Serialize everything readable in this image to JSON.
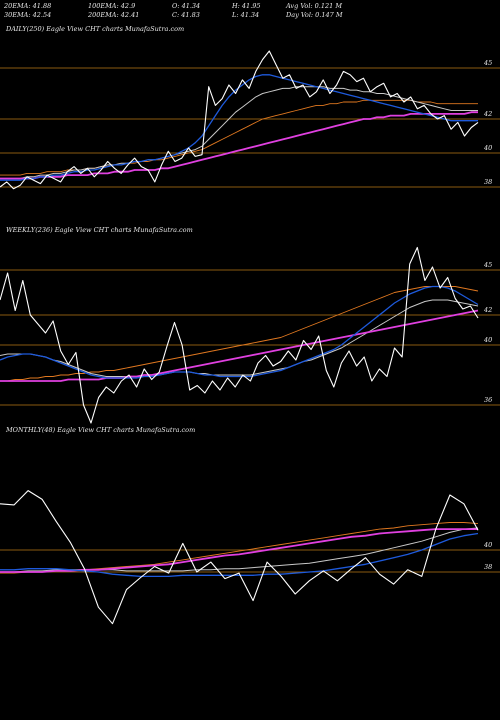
{
  "header": {
    "ema20": "20EMA: 41.88",
    "ema100": "100EMA: 42.9",
    "open": "O: 41.34",
    "high": "H: 41.95",
    "avg_vol": "Avg Vol: 0.121 M",
    "ema30": "30EMA: 42.54",
    "ema200": "200EMA: 42.41",
    "close": "C: 41.83",
    "low": "L: 41.34",
    "day_vol": "Day Vol: 0.147 M"
  },
  "colors": {
    "background": "#000000",
    "price": "#ffffff",
    "ema_fast": "#1e5adc",
    "ema_mid": "#c8c8c8",
    "ema_slow": "#e07820",
    "ema_long": "#e040e0",
    "hline": "#8a5a10"
  },
  "chart_data": [
    {
      "type": "line",
      "title": "DAILY(250) Eagle   View  CHT charts MunafaSutra.com",
      "y_ticks": [
        "45",
        "42",
        "40",
        "38"
      ],
      "ylim": [
        37,
        47
      ],
      "series": [
        {
          "role": "price",
          "values": [
            38.0,
            38.3,
            37.9,
            38.1,
            38.6,
            38.4,
            38.2,
            38.7,
            38.5,
            38.3,
            38.9,
            39.2,
            38.8,
            39.1,
            38.6,
            39.0,
            39.5,
            39.1,
            38.8,
            39.3,
            39.7,
            39.2,
            39.0,
            38.3,
            39.3,
            40.1,
            39.5,
            39.7,
            40.3,
            39.8,
            39.9,
            43.9,
            42.8,
            43.2,
            44.0,
            43.5,
            44.3,
            43.8,
            44.8,
            45.5,
            46.0,
            45.2,
            44.4,
            44.6,
            43.8,
            44.0,
            43.3,
            43.6,
            44.3,
            43.5,
            44.0,
            44.8,
            44.6,
            44.2,
            44.4,
            43.6,
            43.9,
            44.1,
            43.3,
            43.5,
            43.0,
            43.3,
            42.6,
            42.8,
            42.3,
            42.0,
            42.2,
            41.4,
            41.8,
            41.0,
            41.5,
            41.8
          ]
        },
        {
          "role": "ema-fast",
          "values": [
            38.4,
            38.4,
            38.4,
            38.4,
            38.5,
            38.5,
            38.6,
            38.6,
            38.7,
            38.7,
            38.8,
            38.9,
            38.9,
            39.0,
            39.0,
            39.1,
            39.2,
            39.3,
            39.3,
            39.4,
            39.5,
            39.5,
            39.6,
            39.6,
            39.7,
            39.8,
            39.9,
            40.1,
            40.3,
            40.6,
            41.0,
            41.6,
            42.2,
            42.8,
            43.3,
            43.7,
            44.0,
            44.3,
            44.5,
            44.6,
            44.6,
            44.5,
            44.4,
            44.3,
            44.2,
            44.1,
            44.0,
            43.9,
            43.8,
            43.7,
            43.6,
            43.5,
            43.4,
            43.3,
            43.2,
            43.1,
            43.0,
            42.9,
            42.8,
            42.7,
            42.6,
            42.5,
            42.4,
            42.3,
            42.2,
            42.1,
            42.0,
            41.9,
            41.9,
            41.9,
            41.9,
            41.9
          ]
        },
        {
          "role": "ema-mid",
          "values": [
            38.5,
            38.5,
            38.5,
            38.5,
            38.6,
            38.6,
            38.7,
            38.7,
            38.8,
            38.8,
            38.9,
            39.0,
            39.0,
            39.1,
            39.1,
            39.2,
            39.3,
            39.3,
            39.4,
            39.4,
            39.5,
            39.5,
            39.6,
            39.6,
            39.7,
            39.8,
            39.9,
            40.0,
            40.1,
            40.2,
            40.4,
            40.8,
            41.2,
            41.6,
            42.0,
            42.4,
            42.7,
            43.0,
            43.3,
            43.5,
            43.6,
            43.7,
            43.8,
            43.8,
            43.9,
            43.9,
            43.9,
            43.9,
            43.9,
            43.8,
            43.8,
            43.8,
            43.7,
            43.7,
            43.6,
            43.6,
            43.5,
            43.5,
            43.4,
            43.3,
            43.2,
            43.1,
            43.0,
            42.9,
            42.8,
            42.7,
            42.6,
            42.5,
            42.5,
            42.5,
            42.5,
            42.5
          ]
        },
        {
          "role": "ema-slow",
          "values": [
            38.7,
            38.7,
            38.7,
            38.7,
            38.8,
            38.8,
            38.8,
            38.9,
            38.9,
            38.9,
            39.0,
            39.0,
            39.0,
            39.1,
            39.1,
            39.2,
            39.2,
            39.3,
            39.3,
            39.4,
            39.4,
            39.5,
            39.5,
            39.6,
            39.6,
            39.7,
            39.8,
            39.9,
            40.0,
            40.1,
            40.2,
            40.4,
            40.6,
            40.8,
            41.0,
            41.2,
            41.4,
            41.6,
            41.8,
            42.0,
            42.1,
            42.2,
            42.3,
            42.4,
            42.5,
            42.6,
            42.7,
            42.8,
            42.8,
            42.9,
            42.9,
            43.0,
            43.0,
            43.0,
            43.1,
            43.1,
            43.1,
            43.1,
            43.1,
            43.1,
            43.1,
            43.1,
            43.0,
            43.0,
            43.0,
            42.9,
            42.9,
            42.9,
            42.9,
            42.9,
            42.9,
            42.9
          ]
        },
        {
          "role": "ema-long",
          "values": [
            38.5,
            38.5,
            38.5,
            38.5,
            38.5,
            38.5,
            38.6,
            38.6,
            38.6,
            38.6,
            38.7,
            38.7,
            38.7,
            38.7,
            38.8,
            38.8,
            38.8,
            38.9,
            38.9,
            38.9,
            39.0,
            39.0,
            39.0,
            39.0,
            39.1,
            39.1,
            39.2,
            39.3,
            39.4,
            39.5,
            39.6,
            39.7,
            39.8,
            39.9,
            40.0,
            40.1,
            40.2,
            40.3,
            40.4,
            40.5,
            40.6,
            40.7,
            40.8,
            40.9,
            41.0,
            41.1,
            41.2,
            41.3,
            41.4,
            41.5,
            41.6,
            41.7,
            41.8,
            41.9,
            42.0,
            42.0,
            42.1,
            42.1,
            42.2,
            42.2,
            42.2,
            42.3,
            42.3,
            42.3,
            42.3,
            42.3,
            42.3,
            42.3,
            42.3,
            42.3,
            42.4,
            42.4
          ]
        }
      ],
      "hlines": [
        45,
        42,
        40,
        38
      ]
    },
    {
      "type": "line",
      "title": "WEEKLY(236) Eagle   View  CHT charts MunafaSutra.com",
      "y_ticks": [
        "45",
        "42",
        "40",
        "36"
      ],
      "ylim": [
        34,
        47
      ],
      "series": [
        {
          "role": "price",
          "values": [
            43.0,
            44.8,
            42.3,
            44.3,
            42.0,
            41.4,
            40.8,
            41.6,
            39.6,
            38.7,
            39.5,
            36.0,
            34.8,
            36.5,
            37.2,
            36.8,
            37.6,
            38.0,
            37.2,
            38.4,
            37.7,
            38.2,
            39.9,
            41.5,
            40.0,
            37.0,
            37.3,
            36.8,
            37.6,
            37.0,
            37.8,
            37.2,
            38.0,
            37.6,
            38.8,
            39.3,
            38.6,
            38.9,
            39.6,
            39.0,
            40.3,
            39.7,
            40.6,
            38.3,
            37.2,
            38.8,
            39.6,
            38.6,
            39.2,
            37.6,
            38.4,
            37.9,
            39.8,
            39.2,
            45.4,
            46.5,
            44.3,
            45.2,
            43.8,
            44.5,
            43.1,
            42.4,
            42.6,
            41.8
          ]
        },
        {
          "role": "ema-fast",
          "values": [
            39.0,
            39.2,
            39.3,
            39.4,
            39.4,
            39.3,
            39.2,
            39.0,
            38.8,
            38.6,
            38.4,
            38.2,
            38.0,
            37.9,
            37.8,
            37.8,
            37.8,
            37.8,
            37.8,
            37.9,
            37.9,
            38.0,
            38.1,
            38.2,
            38.2,
            38.2,
            38.1,
            38.0,
            38.0,
            37.9,
            37.9,
            37.9,
            37.9,
            37.9,
            38.0,
            38.1,
            38.2,
            38.3,
            38.5,
            38.7,
            38.9,
            39.1,
            39.3,
            39.5,
            39.7,
            40.0,
            40.4,
            40.8,
            41.2,
            41.6,
            42.0,
            42.4,
            42.8,
            43.1,
            43.4,
            43.6,
            43.8,
            43.9,
            43.9,
            43.8,
            43.6,
            43.3,
            43.0,
            42.7
          ]
        },
        {
          "role": "ema-mid",
          "values": [
            39.3,
            39.4,
            39.4,
            39.4,
            39.4,
            39.3,
            39.2,
            39.0,
            38.9,
            38.7,
            38.5,
            38.3,
            38.1,
            38.0,
            37.9,
            37.9,
            37.9,
            37.9,
            37.9,
            37.9,
            38.0,
            38.0,
            38.1,
            38.2,
            38.2,
            38.2,
            38.1,
            38.1,
            38.0,
            38.0,
            38.0,
            38.0,
            38.0,
            38.0,
            38.1,
            38.2,
            38.3,
            38.4,
            38.5,
            38.7,
            38.9,
            39.0,
            39.2,
            39.4,
            39.6,
            39.8,
            40.1,
            40.4,
            40.7,
            41.0,
            41.3,
            41.6,
            41.9,
            42.2,
            42.5,
            42.7,
            42.9,
            43.0,
            43.0,
            43.0,
            42.9,
            42.8,
            42.7,
            42.6
          ]
        },
        {
          "role": "ema-slow",
          "values": [
            37.6,
            37.6,
            37.7,
            37.7,
            37.8,
            37.8,
            37.9,
            37.9,
            38.0,
            38.0,
            38.1,
            38.1,
            38.2,
            38.2,
            38.3,
            38.3,
            38.4,
            38.5,
            38.6,
            38.7,
            38.8,
            38.9,
            39.0,
            39.1,
            39.2,
            39.3,
            39.4,
            39.5,
            39.6,
            39.7,
            39.8,
            39.9,
            40.0,
            40.1,
            40.2,
            40.3,
            40.4,
            40.5,
            40.7,
            40.9,
            41.1,
            41.3,
            41.5,
            41.7,
            41.9,
            42.1,
            42.3,
            42.5,
            42.7,
            42.9,
            43.1,
            43.3,
            43.5,
            43.6,
            43.7,
            43.8,
            43.9,
            43.9,
            43.9,
            43.9,
            43.9,
            43.8,
            43.7,
            43.6
          ]
        },
        {
          "role": "ema-long",
          "values": [
            37.6,
            37.6,
            37.6,
            37.6,
            37.6,
            37.6,
            37.6,
            37.6,
            37.6,
            37.7,
            37.7,
            37.7,
            37.7,
            37.7,
            37.8,
            37.8,
            37.8,
            37.9,
            37.9,
            38.0,
            38.0,
            38.1,
            38.2,
            38.3,
            38.4,
            38.5,
            38.6,
            38.7,
            38.8,
            38.9,
            39.0,
            39.1,
            39.2,
            39.3,
            39.4,
            39.5,
            39.6,
            39.7,
            39.8,
            39.9,
            40.0,
            40.1,
            40.2,
            40.3,
            40.4,
            40.5,
            40.6,
            40.7,
            40.8,
            40.9,
            41.0,
            41.1,
            41.2,
            41.3,
            41.4,
            41.5,
            41.6,
            41.7,
            41.8,
            41.9,
            42.0,
            42.1,
            42.2,
            42.3
          ]
        }
      ],
      "hlines": [
        45,
        42,
        40,
        36
      ]
    },
    {
      "type": "line",
      "title": "MONTHLY(48) Eagle   View  CHT charts MunafaSutra.com",
      "y_ticks": [
        "40",
        "38"
      ],
      "ylim": [
        30,
        50
      ],
      "series": [
        {
          "role": "price",
          "values": [
            44.2,
            44.1,
            45.4,
            44.6,
            42.6,
            40.7,
            38.3,
            34.8,
            33.3,
            36.4,
            37.5,
            38.5,
            37.9,
            40.6,
            38.0,
            38.9,
            37.4,
            37.9,
            35.4,
            38.9,
            37.6,
            36.0,
            37.2,
            38.1,
            37.2,
            38.3,
            39.3,
            37.8,
            36.9,
            38.2,
            37.6,
            41.9,
            45.0,
            44.2,
            41.8
          ]
        },
        {
          "role": "ema-fast",
          "values": [
            38.2,
            38.2,
            38.3,
            38.3,
            38.3,
            38.2,
            38.1,
            38.0,
            37.8,
            37.7,
            37.6,
            37.6,
            37.6,
            37.7,
            37.7,
            37.7,
            37.7,
            37.7,
            37.7,
            37.8,
            37.8,
            37.9,
            38.0,
            38.1,
            38.3,
            38.5,
            38.7,
            39.0,
            39.3,
            39.6,
            40.0,
            40.5,
            41.0,
            41.3,
            41.5
          ]
        },
        {
          "role": "ema-mid",
          "values": [
            38.0,
            38.0,
            38.1,
            38.1,
            38.2,
            38.2,
            38.2,
            38.2,
            38.2,
            38.1,
            38.1,
            38.1,
            38.1,
            38.1,
            38.2,
            38.2,
            38.3,
            38.3,
            38.4,
            38.5,
            38.6,
            38.7,
            38.8,
            39.0,
            39.2,
            39.4,
            39.6,
            39.9,
            40.2,
            40.5,
            40.8,
            41.2,
            41.6,
            41.9,
            42.0
          ]
        },
        {
          "role": "ema-slow",
          "values": [
            37.9,
            37.9,
            38.0,
            38.0,
            38.1,
            38.2,
            38.2,
            38.3,
            38.4,
            38.5,
            38.6,
            38.7,
            38.9,
            39.1,
            39.3,
            39.5,
            39.7,
            39.9,
            40.1,
            40.3,
            40.5,
            40.7,
            40.9,
            41.1,
            41.3,
            41.5,
            41.7,
            41.9,
            42.0,
            42.2,
            42.3,
            42.4,
            42.5,
            42.5,
            42.4
          ]
        },
        {
          "role": "ema-long",
          "values": [
            38.0,
            38.0,
            38.0,
            38.0,
            38.1,
            38.1,
            38.2,
            38.2,
            38.3,
            38.4,
            38.5,
            38.6,
            38.7,
            38.9,
            39.1,
            39.3,
            39.5,
            39.6,
            39.8,
            40.0,
            40.2,
            40.4,
            40.6,
            40.8,
            41.0,
            41.2,
            41.3,
            41.5,
            41.6,
            41.7,
            41.8,
            41.9,
            41.9,
            41.9,
            41.9
          ]
        }
      ],
      "hlines": [
        40,
        38
      ]
    }
  ]
}
